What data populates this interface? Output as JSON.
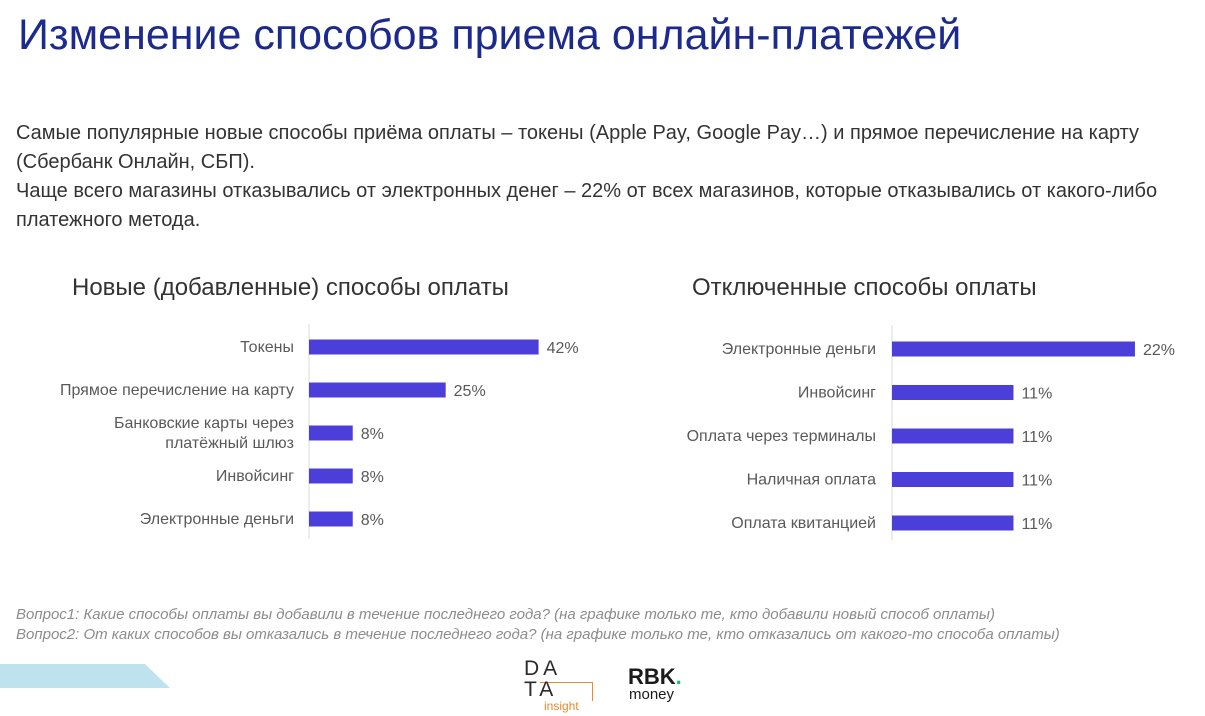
{
  "slide": {
    "title": "Изменение способов приема онлайн-платежей",
    "intro_line1": "Самые популярные новые способы приёма оплаты – токены (Apple Pay, Google Pay…) и прямое перечисление на карту (Сбербанк Онлайн, СБП).",
    "intro_line2": "Чаще всего магазины отказывались от электронных денег – 22% от всех магазинов, которые отказывались от какого-либо платежного метода."
  },
  "colors": {
    "bar": "#4c3fd9",
    "title": "#1b2a8c",
    "axis": "#d9d9d9",
    "text": "#595959"
  },
  "chart_data": [
    {
      "type": "bar",
      "orientation": "horizontal",
      "title": "Новые (добавленные) способы оплаты",
      "categories": [
        [
          "Токены"
        ],
        [
          "Прямое перечисление на карту"
        ],
        [
          "Банковские карты через",
          "платёжный шлюз"
        ],
        [
          "Инвойсинг"
        ],
        [
          "Электронные деньги"
        ]
      ],
      "values": [
        42,
        25,
        8,
        8,
        8
      ],
      "labels": [
        "42%",
        "25%",
        "8%",
        "8%",
        "8%"
      ],
      "xlim": [
        0,
        45
      ],
      "grid": false,
      "legend": "none"
    },
    {
      "type": "bar",
      "orientation": "horizontal",
      "title": "Отключенные способы оплаты",
      "categories": [
        [
          "Электронные деньги"
        ],
        [
          "Инвойсинг"
        ],
        [
          "Оплата через терминалы"
        ],
        [
          "Наличная оплата"
        ],
        [
          "Оплата квитанцией"
        ]
      ],
      "values": [
        22,
        11,
        11,
        11,
        11
      ],
      "labels": [
        "22%",
        "11%",
        "11%",
        "11%",
        "11%"
      ],
      "xlim": [
        0,
        23
      ],
      "grid": false,
      "legend": "none"
    }
  ],
  "footnote": {
    "q1": "Вопрос1: Какие способы оплаты вы добавили в течение последнего года? (на графике только те, кто добавили новый способ оплаты)",
    "q2": "Вопрос2: От каких способов вы отказались в течение последнего года? (на графике только те, кто отказались от какого-то способа оплаты)"
  },
  "logos": {
    "data_line1": "DA",
    "data_line2": "TA",
    "data_tag": "insight",
    "rbk_main": "RBK",
    "rbk_dot": ".",
    "rbk_sub": "money"
  }
}
